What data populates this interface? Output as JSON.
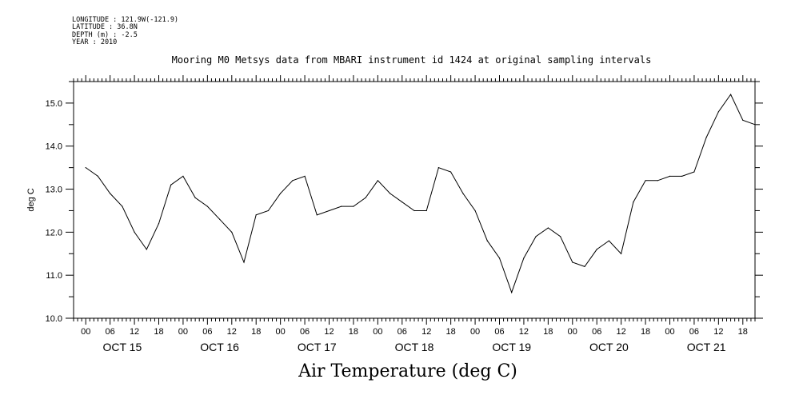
{
  "meta": {
    "longitude": "LONGITUDE : 121.9W(-121.9)",
    "latitude": "LATITUDE : 36.8N",
    "depth": "DEPTH (m) : -2.5",
    "year": "YEAR : 2010"
  },
  "chart_data": {
    "type": "line",
    "title": "Mooring M0 Metsys data from MBARI instrument id 1424 at original sampling intervals",
    "xlabel": "Air Temperature (deg C)",
    "ylabel": "deg C",
    "ylim": [
      10.0,
      15.5
    ],
    "yticks": [
      "10.0",
      "11.0",
      "12.0",
      "13.0",
      "14.0",
      "15.0"
    ],
    "xlim_hours": [
      -3,
      165
    ],
    "x_hour_ticks": [
      "00",
      "06",
      "12",
      "18",
      "00",
      "06",
      "12",
      "18",
      "00",
      "06",
      "12",
      "18",
      "00",
      "06",
      "12",
      "18",
      "00",
      "06",
      "12",
      "18",
      "00",
      "06",
      "12",
      "18",
      "00",
      "06",
      "12",
      "18"
    ],
    "x_day_labels": [
      "OCT 15",
      "OCT 16",
      "OCT 17",
      "OCT 18",
      "OCT 19",
      "OCT 20",
      "OCT 21"
    ],
    "grid": false,
    "series": [
      {
        "color": "#000000",
        "x": [
          "OCT 15 00:00",
          "OCT 15 03:00",
          "OCT 15 06:00",
          "OCT 15 09:00",
          "OCT 15 12:00",
          "OCT 15 15:00",
          "OCT 15 18:00",
          "OCT 15 21:00",
          "OCT 16 00:00",
          "OCT 16 03:00",
          "OCT 16 06:00",
          "OCT 16 09:00",
          "OCT 16 12:00",
          "OCT 16 15:00",
          "OCT 16 18:00",
          "OCT 16 21:00",
          "OCT 17 00:00",
          "OCT 17 03:00",
          "OCT 17 06:00",
          "OCT 17 09:00",
          "OCT 17 12:00",
          "OCT 17 15:00",
          "OCT 17 18:00",
          "OCT 17 21:00",
          "OCT 18 00:00",
          "OCT 18 03:00",
          "OCT 18 06:00",
          "OCT 18 09:00",
          "OCT 18 12:00",
          "OCT 18 15:00",
          "OCT 18 18:00",
          "OCT 18 21:00",
          "OCT 19 00:00",
          "OCT 19 03:00",
          "OCT 19 06:00",
          "OCT 19 09:00",
          "OCT 19 12:00",
          "OCT 19 15:00",
          "OCT 19 18:00",
          "OCT 19 21:00",
          "OCT 20 00:00",
          "OCT 20 03:00",
          "OCT 20 06:00",
          "OCT 20 09:00",
          "OCT 20 12:00",
          "OCT 20 15:00",
          "OCT 20 18:00",
          "OCT 20 21:00",
          "OCT 21 00:00",
          "OCT 21 03:00",
          "OCT 21 06:00",
          "OCT 21 09:00",
          "OCT 21 12:00",
          "OCT 21 15:00",
          "OCT 21 18:00",
          "OCT 21 21:00"
        ],
        "values": [
          13.5,
          13.3,
          12.9,
          12.6,
          12.0,
          11.6,
          12.2,
          13.1,
          13.3,
          12.8,
          12.6,
          12.3,
          12.0,
          11.3,
          12.4,
          12.5,
          12.9,
          13.2,
          13.3,
          12.4,
          12.5,
          12.6,
          12.6,
          12.8,
          13.2,
          12.9,
          12.7,
          12.5,
          12.5,
          13.5,
          13.4,
          12.9,
          12.5,
          11.8,
          11.4,
          10.6,
          11.4,
          11.9,
          12.1,
          11.9,
          11.3,
          11.2,
          11.6,
          11.8,
          11.5,
          12.7,
          13.2,
          13.2,
          13.3,
          13.3,
          13.4,
          14.2,
          14.8,
          15.2,
          14.6,
          14.5
        ]
      }
    ]
  }
}
